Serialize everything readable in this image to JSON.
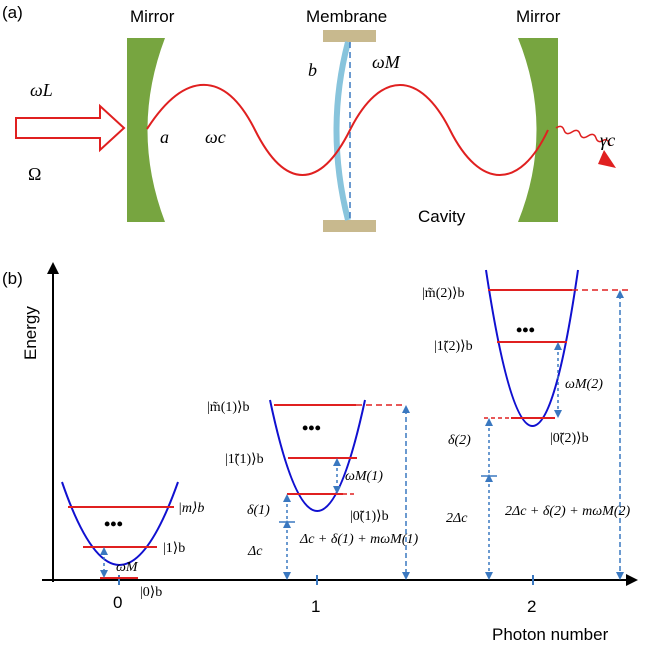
{
  "panel_a": {
    "tag": "(a)",
    "left_mirror_label": "Mirror",
    "membrane_label": "Membrane",
    "right_mirror_label": "Mirror",
    "input_freq": "ωL",
    "input_amp": "Ω",
    "cavity_mode": "a",
    "cavity_freq": "ωc",
    "membrane_mode": "b",
    "membrane_freq": "ωM",
    "cavity_label": "Cavity",
    "decay": "γc",
    "colors": {
      "mirror": "#77a540",
      "membrane": "#88c4dc",
      "clamp": "#c8b98e",
      "field": "#e02020"
    }
  },
  "panel_b": {
    "tag": "(b)",
    "y_axis": "Energy",
    "x_axis": "Photon number",
    "ticks": [
      "0",
      "1",
      "2"
    ],
    "ket0": "|m⟩b",
    "ket0_1": "|1⟩b",
    "ket0_0": "|0⟩b",
    "omega_m": "ωM",
    "ket1_m": "|m̃(1)⟩b",
    "ket1_1": "|1̃(1)⟩b",
    "ket1_0": "|0̃(1)⟩b",
    "omega_m1": "ωM(1)",
    "delta1": "δ(1)",
    "delta_c": "Δc",
    "energy1": "Δc + δ(1) + mωM(1)",
    "ket2_m": "|m̃(2)⟩b",
    "ket2_1": "|1̃(2)⟩b",
    "ket2_0": "|0̃(2)⟩b",
    "omega_m2": "ωM(2)",
    "delta2": "δ(2)",
    "two_delta_c": "2Δc",
    "energy2": "2Δc + δ(2) + mωM(2)",
    "dots": "•••",
    "colors": {
      "parabola": "#1010d0",
      "level": "#e02020",
      "arrow": "#3a78c0"
    }
  }
}
